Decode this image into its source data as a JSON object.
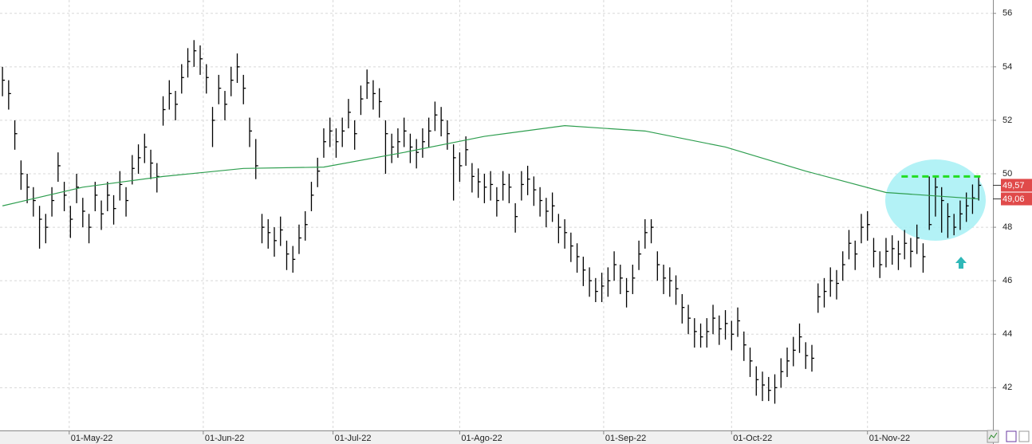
{
  "chart_data": {
    "type": "ohlc",
    "xlim": [
      -0.4,
      160.3
    ],
    "ylim": [
      40.4,
      56.5
    ],
    "yticks": [
      42,
      44,
      46,
      48,
      50,
      52,
      54,
      56
    ],
    "xticks": [
      {
        "value": 10.8,
        "label": "01-May-22"
      },
      {
        "value": 32.5,
        "label": "01-Jun-22"
      },
      {
        "value": 53.5,
        "label": "01-Jul-22"
      },
      {
        "value": 74,
        "label": "01-Ago-22"
      },
      {
        "value": 97.3,
        "label": "01-Sep-22"
      },
      {
        "value": 118,
        "label": "01-Oct-22"
      },
      {
        "value": 140,
        "label": "01-Nov-22"
      }
    ],
    "grid": true,
    "color": "#000000",
    "high": [
      54.0,
      53.5,
      52.0,
      50.5,
      50.0,
      49.5,
      48.8,
      48.5,
      49.5,
      50.8,
      49.7,
      48.8,
      50.0,
      49.1,
      48.5,
      49.7,
      49.0,
      49.7,
      49.2,
      50.1,
      49.5,
      50.7,
      51.1,
      51.5,
      50.9,
      50.4,
      52.9,
      53.5,
      53.1,
      54.1,
      54.7,
      55.0,
      54.8,
      54.1,
      52.5,
      53.7,
      53.1,
      54.0,
      54.5,
      53.7,
      52.1,
      51.3,
      48.5,
      48.3,
      48.0,
      48.4,
      47.5,
      47.3,
      48.1,
      48.6,
      49.7,
      50.6,
      51.7,
      52.1,
      51.7,
      52.1,
      52.8,
      52.0,
      53.3,
      53.9,
      53.5,
      53.2,
      52.0,
      51.5,
      51.7,
      52.1,
      51.5,
      51.3,
      51.7,
      52.1,
      52.7,
      52.5,
      52.0,
      51.1,
      50.8,
      51.4,
      50.4,
      50.2,
      50.0,
      50.1,
      49.5,
      50.1,
      50.0,
      48.9,
      50.1,
      50.3,
      49.9,
      49.5,
      49.1,
      49.3,
      48.5,
      48.3,
      47.8,
      47.4,
      46.9,
      46.5,
      46.1,
      46.3,
      46.5,
      47.1,
      46.6,
      46.1,
      46.6,
      47.5,
      48.3,
      48.3,
      47.1,
      46.6,
      46.5,
      46.2,
      45.5,
      45.1,
      44.6,
      44.4,
      44.6,
      45.1,
      44.7,
      44.9,
      44.5,
      45.0,
      44.1,
      43.5,
      42.8,
      42.6,
      42.4,
      42.5,
      43.1,
      43.5,
      43.9,
      44.4,
      43.7,
      43.6,
      45.9,
      46.1,
      46.5,
      46.4,
      47.1,
      47.9,
      47.5,
      48.5,
      48.6,
      47.6,
      47.1,
      47.6,
      47.7,
      47.5,
      47.9,
      47.6,
      48.1,
      47.4,
      49.9,
      49.9,
      49.5,
      48.9,
      48.5,
      49.0,
      49.3,
      49.6,
      49.9
    ],
    "low": [
      52.9,
      52.4,
      50.9,
      49.4,
      48.9,
      48.4,
      47.2,
      47.4,
      48.4,
      49.7,
      48.6,
      47.6,
      48.9,
      48.0,
      47.4,
      48.6,
      47.9,
      48.6,
      48.1,
      49.0,
      48.4,
      49.6,
      50.0,
      50.4,
      49.8,
      49.3,
      51.8,
      52.4,
      52.0,
      53.0,
      53.6,
      54.0,
      53.7,
      53.0,
      51.0,
      52.6,
      52.0,
      52.9,
      53.4,
      52.6,
      51.0,
      49.8,
      47.4,
      47.2,
      46.9,
      47.3,
      46.4,
      46.3,
      47.0,
      47.5,
      48.6,
      49.5,
      50.6,
      51.0,
      50.6,
      51.0,
      51.7,
      50.9,
      52.2,
      52.8,
      52.4,
      52.1,
      50.0,
      50.4,
      50.6,
      51.0,
      50.4,
      50.2,
      50.6,
      51.0,
      51.6,
      51.4,
      50.9,
      49.0,
      49.7,
      50.3,
      49.3,
      49.1,
      48.9,
      49.0,
      48.4,
      49.0,
      48.9,
      47.8,
      49.0,
      49.2,
      48.8,
      48.4,
      48.0,
      48.2,
      47.4,
      47.2,
      46.7,
      46.3,
      45.8,
      45.4,
      45.2,
      45.2,
      45.4,
      46.0,
      45.5,
      45.0,
      45.5,
      46.4,
      47.2,
      47.4,
      46.0,
      45.5,
      45.4,
      45.1,
      44.4,
      44.0,
      43.5,
      43.5,
      43.5,
      44.0,
      43.6,
      43.8,
      43.4,
      43.9,
      43.0,
      42.4,
      41.7,
      41.5,
      41.5,
      41.4,
      42.0,
      42.4,
      42.8,
      43.3,
      42.7,
      42.6,
      44.8,
      45.0,
      45.4,
      45.3,
      46.0,
      46.8,
      46.4,
      47.4,
      47.5,
      46.5,
      46.1,
      46.5,
      46.6,
      46.4,
      46.8,
      46.5,
      47.0,
      46.3,
      47.9,
      48.4,
      47.8,
      47.6,
      47.7,
      47.9,
      48.2,
      48.5,
      49.0
    ],
    "close": [
      53.5,
      53.0,
      51.5,
      50.0,
      49.5,
      49.0,
      48.3,
      48.0,
      49.0,
      50.3,
      49.2,
      48.3,
      49.5,
      48.6,
      48.0,
      49.2,
      48.5,
      49.2,
      48.7,
      49.6,
      49.0,
      50.2,
      50.6,
      51.0,
      50.4,
      49.9,
      52.4,
      53.0,
      52.6,
      53.6,
      54.2,
      54.6,
      54.3,
      53.6,
      52.0,
      53.2,
      52.6,
      53.5,
      54.0,
      53.2,
      51.6,
      50.3,
      48.0,
      47.8,
      47.5,
      47.9,
      47.0,
      46.8,
      47.6,
      48.1,
      49.2,
      50.1,
      51.2,
      51.6,
      51.2,
      51.6,
      52.3,
      51.5,
      52.8,
      53.4,
      53.0,
      52.7,
      51.5,
      51.0,
      51.2,
      51.6,
      51.0,
      50.8,
      51.2,
      51.6,
      52.2,
      52.0,
      51.5,
      50.6,
      50.3,
      50.9,
      49.9,
      49.7,
      49.5,
      49.6,
      49.0,
      49.6,
      49.5,
      48.4,
      49.6,
      49.8,
      49.4,
      49.0,
      48.6,
      48.8,
      48.0,
      47.8,
      47.3,
      46.9,
      46.4,
      46.0,
      45.6,
      45.8,
      46.0,
      46.6,
      46.1,
      45.6,
      46.1,
      47.0,
      47.8,
      48.0,
      46.6,
      46.1,
      46.0,
      45.7,
      45.0,
      44.6,
      44.1,
      43.9,
      44.1,
      44.6,
      44.2,
      44.4,
      44.0,
      44.5,
      43.6,
      43.0,
      42.3,
      42.1,
      41.9,
      42.0,
      42.6,
      43.0,
      43.4,
      43.9,
      43.2,
      43.1,
      45.4,
      45.6,
      46.0,
      45.9,
      46.6,
      47.4,
      47.0,
      48.0,
      48.1,
      47.1,
      46.6,
      47.1,
      47.2,
      47.0,
      47.4,
      47.1,
      47.6,
      46.9,
      48.1,
      49.5,
      49.0,
      48.4,
      48.0,
      48.5,
      48.8,
      49.1,
      49.57
    ],
    "last_label": "49,57",
    "moving_average": {
      "color": "#2e9e4f",
      "x": [
        0,
        13,
        26,
        39,
        52,
        65,
        78,
        91,
        104,
        117,
        130,
        143,
        158
      ],
      "values": [
        48.8,
        49.5,
        49.9,
        50.2,
        50.25,
        50.8,
        51.4,
        51.8,
        51.6,
        51.0,
        50.1,
        49.3,
        49.06
      ],
      "last_label": "49,06"
    },
    "resistance": {
      "value": 49.9,
      "color": "#22dd22",
      "x": [
        145.5,
        158.5
      ]
    }
  }
}
